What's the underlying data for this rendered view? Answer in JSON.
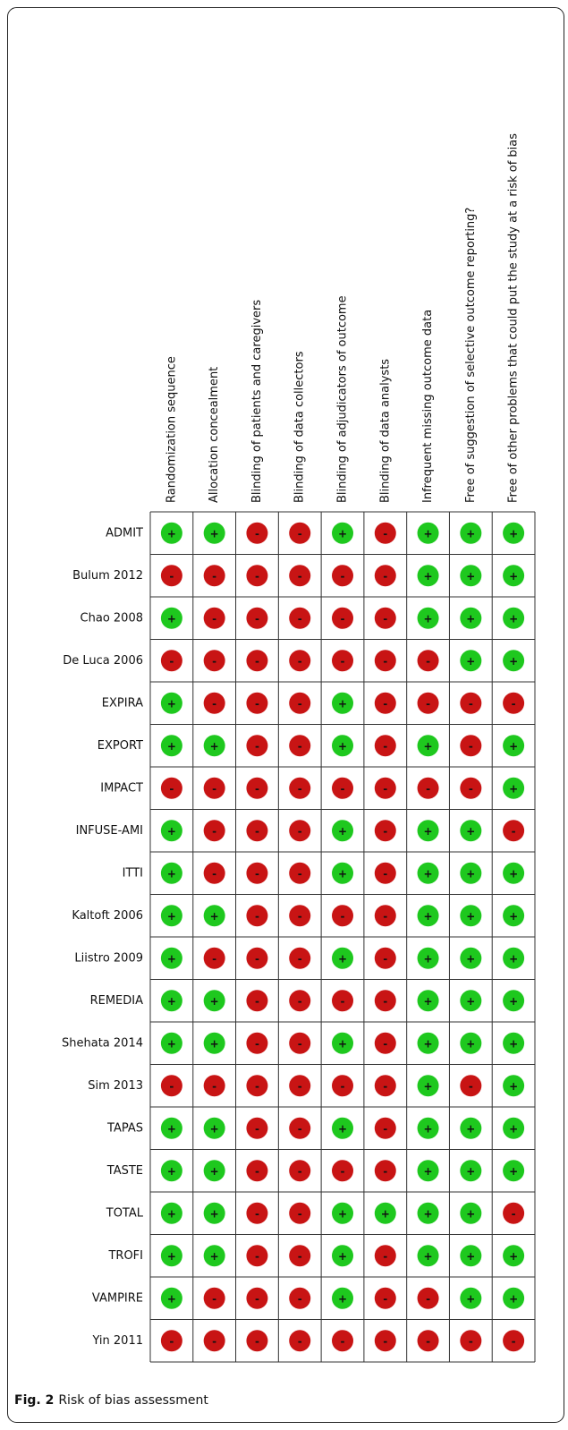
{
  "figure": {
    "columns": [
      "Randomization sequence",
      "Allocation concealment",
      "Blinding of patients and caregivers",
      "Blinding of data collectors",
      "Blinding of adjudicators of outcome",
      "Blinding of data analysts",
      "Infrequent missing outcome data",
      "Free of suggestion of selective outcome reporting?",
      "Free of other problems that could put the study at a risk of bias"
    ],
    "rows": [
      {
        "study": "ADMIT",
        "judgments": [
          "+",
          "+",
          "-",
          "-",
          "+",
          "-",
          "+",
          "+",
          "+"
        ]
      },
      {
        "study": "Bulum 2012",
        "judgments": [
          "-",
          "-",
          "-",
          "-",
          "-",
          "-",
          "+",
          "+",
          "+"
        ]
      },
      {
        "study": "Chao 2008",
        "judgments": [
          "+",
          "-",
          "-",
          "-",
          "-",
          "-",
          "+",
          "+",
          "+"
        ]
      },
      {
        "study": "De Luca 2006",
        "judgments": [
          "-",
          "-",
          "-",
          "-",
          "-",
          "-",
          "-",
          "+",
          "+"
        ]
      },
      {
        "study": "EXPIRA",
        "judgments": [
          "+",
          "-",
          "-",
          "-",
          "+",
          "-",
          "-",
          "-",
          "-"
        ]
      },
      {
        "study": "EXPORT",
        "judgments": [
          "+",
          "+",
          "-",
          "-",
          "+",
          "-",
          "+",
          "-",
          "+"
        ]
      },
      {
        "study": "IMPACT",
        "judgments": [
          "-",
          "-",
          "-",
          "-",
          "-",
          "-",
          "-",
          "-",
          "+"
        ]
      },
      {
        "study": "INFUSE-AMI",
        "judgments": [
          "+",
          "-",
          "-",
          "-",
          "+",
          "-",
          "+",
          "+",
          "-"
        ]
      },
      {
        "study": "ITTI",
        "judgments": [
          "+",
          "-",
          "-",
          "-",
          "+",
          "-",
          "+",
          "+",
          "+"
        ]
      },
      {
        "study": "Kaltoft 2006",
        "judgments": [
          "+",
          "+",
          "-",
          "-",
          "-",
          "-",
          "+",
          "+",
          "+"
        ]
      },
      {
        "study": "Liistro 2009",
        "judgments": [
          "+",
          "-",
          "-",
          "-",
          "+",
          "-",
          "+",
          "+",
          "+"
        ]
      },
      {
        "study": "REMEDIA",
        "judgments": [
          "+",
          "+",
          "-",
          "-",
          "-",
          "-",
          "+",
          "+",
          "+"
        ]
      },
      {
        "study": "Shehata 2014",
        "judgments": [
          "+",
          "+",
          "-",
          "-",
          "+",
          "-",
          "+",
          "+",
          "+"
        ]
      },
      {
        "study": "Sim 2013",
        "judgments": [
          "-",
          "-",
          "-",
          "-",
          "-",
          "-",
          "+",
          "-",
          "+"
        ]
      },
      {
        "study": "TAPAS",
        "judgments": [
          "+",
          "+",
          "-",
          "-",
          "+",
          "-",
          "+",
          "+",
          "+"
        ]
      },
      {
        "study": "TASTE",
        "judgments": [
          "+",
          "+",
          "-",
          "-",
          "-",
          "-",
          "+",
          "+",
          "+"
        ]
      },
      {
        "study": "TOTAL",
        "judgments": [
          "+",
          "+",
          "-",
          "-",
          "+",
          "+",
          "+",
          "+",
          "-"
        ]
      },
      {
        "study": "TROFI",
        "judgments": [
          "+",
          "+",
          "-",
          "-",
          "+",
          "-",
          "+",
          "+",
          "+"
        ]
      },
      {
        "study": "VAMPIRE",
        "judgments": [
          "+",
          "-",
          "-",
          "-",
          "+",
          "-",
          "-",
          "+",
          "+"
        ]
      },
      {
        "study": "Yin 2011",
        "judgments": [
          "-",
          "-",
          "-",
          "-",
          "-",
          "-",
          "-",
          "-",
          "-"
        ]
      }
    ],
    "colors": {
      "+": "#1ec81e",
      "-": "#c81414"
    }
  },
  "caption": {
    "label": "Fig. 2",
    "text": "Risk of bias assessment"
  }
}
